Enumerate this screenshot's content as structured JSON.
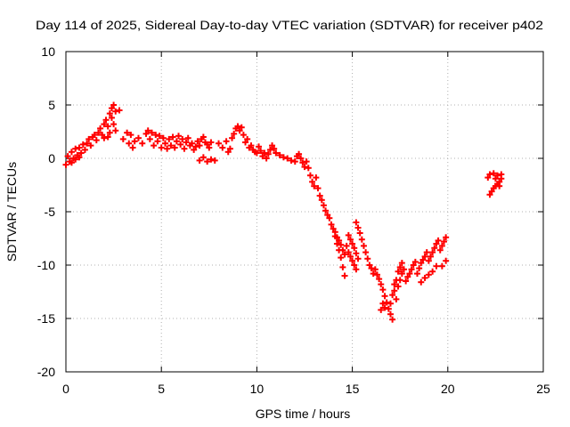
{
  "chart_data": {
    "type": "scatter",
    "title": "Day 114 of 2025, Sidereal Day-to-day VTEC variation (SDTVAR) for receiver p402",
    "xlabel": "GPS time / hours",
    "ylabel": "SDTVAR / TECUs",
    "xlim": [
      0,
      25
    ],
    "ylim": [
      -20,
      10
    ],
    "xticks": [
      "0",
      "5",
      "10",
      "15",
      "20",
      "25"
    ],
    "yticks": [
      "10",
      "5",
      "0",
      "-5",
      "-10",
      "-15",
      "-20"
    ],
    "grid": true,
    "marker": "+",
    "series": [
      {
        "name": "SDTVAR",
        "color": "#ff0000",
        "points": [
          [
            0.0,
            -0.6
          ],
          [
            0.1,
            0.2
          ],
          [
            0.2,
            -0.3
          ],
          [
            0.3,
            0.6
          ],
          [
            0.4,
            0.0
          ],
          [
            0.5,
            0.9
          ],
          [
            0.6,
            0.3
          ],
          [
            0.7,
            1.0
          ],
          [
            0.8,
            0.5
          ],
          [
            0.9,
            1.3
          ],
          [
            1.0,
            0.8
          ],
          [
            1.1,
            1.4
          ],
          [
            0.3,
            -0.4
          ],
          [
            0.5,
            -0.1
          ],
          [
            0.7,
            0.1
          ],
          [
            1.2,
            1.8
          ],
          [
            1.3,
            1.2
          ],
          [
            1.4,
            2.0
          ],
          [
            1.5,
            2.2
          ],
          [
            1.6,
            1.7
          ],
          [
            1.7,
            2.4
          ],
          [
            1.8,
            2.8
          ],
          [
            1.9,
            2.2
          ],
          [
            2.0,
            3.2
          ],
          [
            2.1,
            3.6
          ],
          [
            2.2,
            3.0
          ],
          [
            2.3,
            4.2
          ],
          [
            2.4,
            4.7
          ],
          [
            2.5,
            5.0
          ],
          [
            2.4,
            3.8
          ],
          [
            2.3,
            2.4
          ],
          [
            2.2,
            2.0
          ],
          [
            2.0,
            1.9
          ],
          [
            2.6,
            4.4
          ],
          [
            2.8,
            4.5
          ],
          [
            2.5,
            3.2
          ],
          [
            2.6,
            2.6
          ],
          [
            3.0,
            1.8
          ],
          [
            3.2,
            2.4
          ],
          [
            3.3,
            1.4
          ],
          [
            3.4,
            2.2
          ],
          [
            3.5,
            1.0
          ],
          [
            3.6,
            1.6
          ],
          [
            3.8,
            1.9
          ],
          [
            4.0,
            1.4
          ],
          [
            4.2,
            2.3
          ],
          [
            4.3,
            2.6
          ],
          [
            4.4,
            1.8
          ],
          [
            4.5,
            2.4
          ],
          [
            4.6,
            1.2
          ],
          [
            4.7,
            2.2
          ],
          [
            4.8,
            1.6
          ],
          [
            4.9,
            2.1
          ],
          [
            5.0,
            1.0
          ],
          [
            5.1,
            1.9
          ],
          [
            5.2,
            1.4
          ],
          [
            5.3,
            0.9
          ],
          [
            5.4,
            1.8
          ],
          [
            5.5,
            1.2
          ],
          [
            5.6,
            2.0
          ],
          [
            5.7,
            1.0
          ],
          [
            5.8,
            1.6
          ],
          [
            5.9,
            2.1
          ],
          [
            6.0,
            1.3
          ],
          [
            6.1,
            1.8
          ],
          [
            6.2,
            0.9
          ],
          [
            6.3,
            1.5
          ],
          [
            6.4,
            1.9
          ],
          [
            6.5,
            1.2
          ],
          [
            6.6,
            1.4
          ],
          [
            6.7,
            0.8
          ],
          [
            6.8,
            1.1
          ],
          [
            6.9,
            1.6
          ],
          [
            7.0,
            1.2
          ],
          [
            7.1,
            1.8
          ],
          [
            7.2,
            2.0
          ],
          [
            7.3,
            1.5
          ],
          [
            7.4,
            1.3
          ],
          [
            7.5,
            1.0
          ],
          [
            7.6,
            1.5
          ],
          [
            7.0,
            -0.2
          ],
          [
            7.2,
            0.1
          ],
          [
            7.4,
            -0.3
          ],
          [
            7.6,
            -0.1
          ],
          [
            7.8,
            -0.2
          ],
          [
            8.0,
            1.4
          ],
          [
            8.2,
            1.0
          ],
          [
            8.4,
            1.6
          ],
          [
            8.5,
            0.6
          ],
          [
            8.6,
            0.9
          ],
          [
            8.7,
            1.9
          ],
          [
            8.8,
            2.3
          ],
          [
            8.9,
            2.8
          ],
          [
            9.0,
            3.0
          ],
          [
            9.1,
            2.6
          ],
          [
            9.2,
            2.9
          ],
          [
            9.3,
            2.2
          ],
          [
            9.4,
            1.5
          ],
          [
            9.5,
            1.8
          ],
          [
            9.6,
            1.0
          ],
          [
            9.7,
            1.2
          ],
          [
            9.8,
            0.8
          ],
          [
            9.9,
            0.6
          ],
          [
            10.0,
            0.5
          ],
          [
            10.1,
            1.1
          ],
          [
            10.2,
            0.7
          ],
          [
            10.3,
            0.2
          ],
          [
            10.4,
            0.5
          ],
          [
            10.5,
            0.0
          ],
          [
            10.6,
            0.4
          ],
          [
            10.7,
            0.8
          ],
          [
            10.8,
            1.2
          ],
          [
            10.9,
            0.9
          ],
          [
            11.0,
            0.5
          ],
          [
            11.2,
            0.3
          ],
          [
            11.4,
            0.1
          ],
          [
            11.6,
            0.0
          ],
          [
            11.8,
            -0.2
          ],
          [
            12.0,
            -0.3
          ],
          [
            12.1,
            0.2
          ],
          [
            12.2,
            0.4
          ],
          [
            12.3,
            0.0
          ],
          [
            12.4,
            -0.4
          ],
          [
            12.5,
            -0.8
          ],
          [
            12.6,
            -0.3
          ],
          [
            12.7,
            -0.9
          ],
          [
            12.8,
            -1.6
          ],
          [
            12.9,
            -2.2
          ],
          [
            13.0,
            -2.6
          ],
          [
            13.1,
            -1.8
          ],
          [
            13.2,
            -2.8
          ],
          [
            13.3,
            -3.5
          ],
          [
            13.4,
            -3.9
          ],
          [
            13.5,
            -4.4
          ],
          [
            13.6,
            -4.9
          ],
          [
            13.7,
            -5.3
          ],
          [
            13.8,
            -5.6
          ],
          [
            13.9,
            -6.2
          ],
          [
            14.0,
            -6.6
          ],
          [
            14.1,
            -7.3
          ],
          [
            14.2,
            -8.0
          ],
          [
            14.3,
            -8.6
          ],
          [
            14.4,
            -9.3
          ],
          [
            14.5,
            -10.2
          ],
          [
            14.6,
            -11.0
          ],
          [
            14.1,
            -6.9
          ],
          [
            14.2,
            -7.4
          ],
          [
            14.3,
            -7.7
          ],
          [
            14.4,
            -8.1
          ],
          [
            14.5,
            -8.6
          ],
          [
            14.6,
            -9.0
          ],
          [
            14.7,
            -8.2
          ],
          [
            14.8,
            -8.8
          ],
          [
            14.9,
            -9.2
          ],
          [
            15.0,
            -9.6
          ],
          [
            15.1,
            -10.0
          ],
          [
            15.2,
            -10.4
          ],
          [
            14.8,
            -7.2
          ],
          [
            14.9,
            -7.6
          ],
          [
            15.0,
            -8.0
          ],
          [
            15.1,
            -8.4
          ],
          [
            15.2,
            -8.9
          ],
          [
            15.3,
            -9.4
          ],
          [
            15.2,
            -6.0
          ],
          [
            15.3,
            -6.5
          ],
          [
            15.4,
            -7.0
          ],
          [
            15.5,
            -7.6
          ],
          [
            15.6,
            -8.2
          ],
          [
            15.7,
            -8.8
          ],
          [
            15.8,
            -9.4
          ],
          [
            15.9,
            -10.0
          ],
          [
            16.0,
            -10.3
          ],
          [
            16.1,
            -10.8
          ],
          [
            16.2,
            -10.4
          ],
          [
            16.3,
            -10.9
          ],
          [
            16.4,
            -11.3
          ],
          [
            16.5,
            -11.8
          ],
          [
            16.6,
            -12.3
          ],
          [
            16.7,
            -12.9
          ],
          [
            16.8,
            -13.5
          ],
          [
            16.9,
            -14.1
          ],
          [
            16.6,
            -13.6
          ],
          [
            16.7,
            -14.0
          ],
          [
            16.5,
            -14.2
          ],
          [
            17.0,
            -14.6
          ],
          [
            17.1,
            -15.1
          ],
          [
            17.0,
            -13.6
          ],
          [
            17.1,
            -12.8
          ],
          [
            17.2,
            -12.4
          ],
          [
            17.3,
            -13.2
          ],
          [
            17.4,
            -12.0
          ],
          [
            17.5,
            -11.4
          ],
          [
            17.6,
            -10.8
          ],
          [
            17.2,
            -11.8
          ],
          [
            17.3,
            -11.4
          ],
          [
            17.4,
            -10.6
          ],
          [
            17.5,
            -10.2
          ],
          [
            17.6,
            -9.8
          ],
          [
            17.7,
            -10.4
          ],
          [
            17.8,
            -11.5
          ],
          [
            17.9,
            -11.1
          ],
          [
            18.0,
            -10.8
          ],
          [
            18.1,
            -10.4
          ],
          [
            18.2,
            -10.0
          ],
          [
            18.3,
            -9.7
          ],
          [
            18.4,
            -10.8
          ],
          [
            18.5,
            -10.3
          ],
          [
            18.6,
            -9.8
          ],
          [
            18.7,
            -9.5
          ],
          [
            18.8,
            -9.2
          ],
          [
            18.9,
            -8.8
          ],
          [
            19.0,
            -9.6
          ],
          [
            19.1,
            -9.2
          ],
          [
            19.2,
            -8.8
          ],
          [
            19.3,
            -8.4
          ],
          [
            19.4,
            -8.0
          ],
          [
            19.5,
            -7.7
          ],
          [
            19.6,
            -8.6
          ],
          [
            19.7,
            -8.2
          ],
          [
            19.8,
            -7.8
          ],
          [
            19.9,
            -7.4
          ],
          [
            19.9,
            -9.6
          ],
          [
            19.7,
            -10.1
          ],
          [
            18.6,
            -11.6
          ],
          [
            18.8,
            -11.2
          ],
          [
            19.0,
            -10.9
          ],
          [
            19.2,
            -10.6
          ],
          [
            19.4,
            -10.1
          ],
          [
            22.2,
            -3.4
          ],
          [
            22.3,
            -3.1
          ],
          [
            22.4,
            -2.8
          ],
          [
            22.5,
            -2.6
          ],
          [
            22.6,
            -2.4
          ],
          [
            22.7,
            -2.2
          ],
          [
            22.8,
            -1.9
          ],
          [
            22.1,
            -1.8
          ],
          [
            22.2,
            -1.5
          ],
          [
            22.4,
            -1.4
          ],
          [
            22.6,
            -1.6
          ],
          [
            22.8,
            -1.5
          ],
          [
            22.5,
            -1.9
          ],
          [
            22.7,
            -2.6
          ]
        ]
      }
    ]
  }
}
